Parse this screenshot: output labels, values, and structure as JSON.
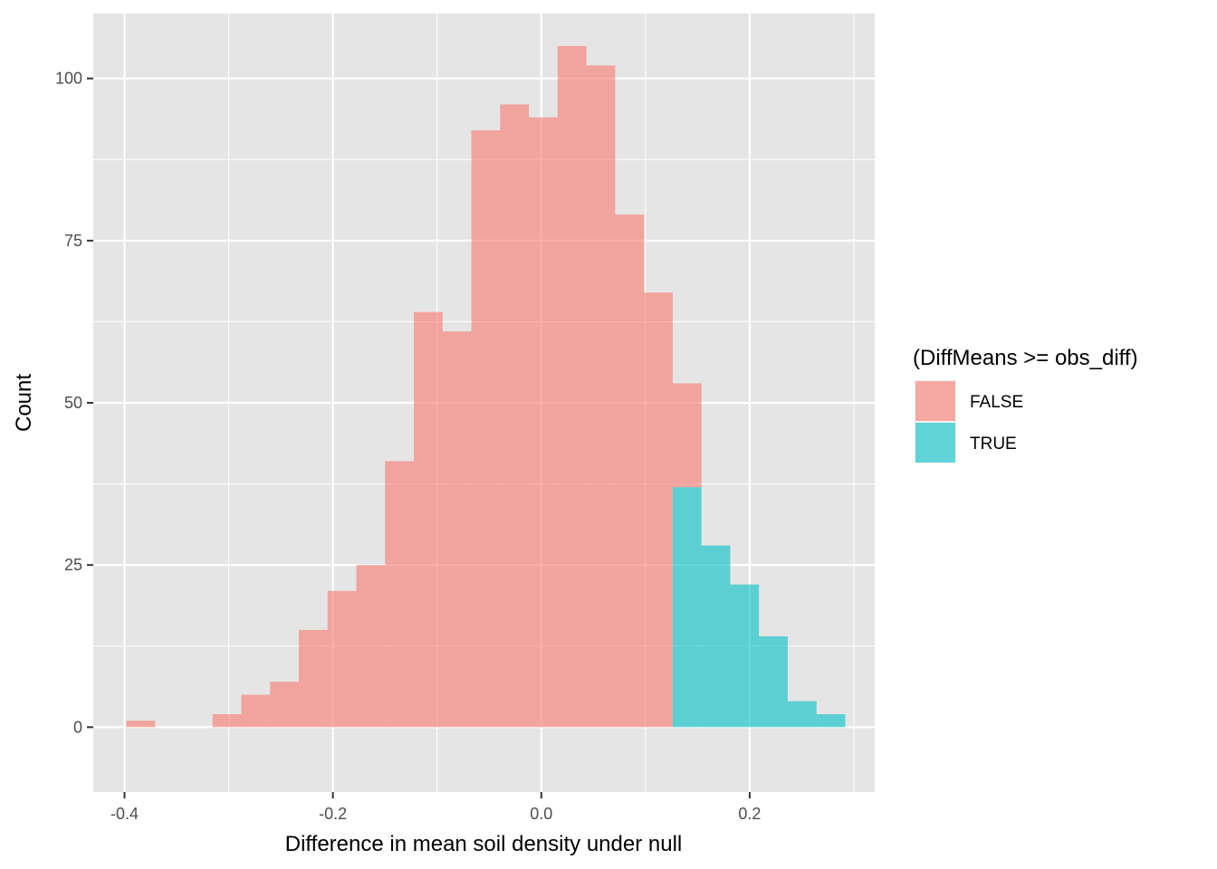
{
  "chart_data": {
    "type": "bar",
    "subtype": "stacked-histogram",
    "xlabel": "Difference in mean soil density under null",
    "ylabel": "Count",
    "xlim": [
      -0.43,
      0.32
    ],
    "ylim": [
      -10,
      110
    ],
    "x_ticks": [
      -0.4,
      -0.2,
      0.0,
      0.2
    ],
    "x_tick_labels": [
      "-0.4",
      "-0.2",
      "0.0",
      "0.2"
    ],
    "y_ticks": [
      0,
      25,
      50,
      75,
      100
    ],
    "y_tick_labels": [
      "0",
      "25",
      "50",
      "75",
      "100"
    ],
    "grid": true,
    "background": "#e5e5e5",
    "bin_width": 0.0276,
    "bin_start": -0.3983,
    "legend": {
      "title": "(DiffMeans >= obs_diff)",
      "position": "right",
      "entries": [
        {
          "label": "FALSE",
          "color": "#f8766d"
        },
        {
          "label": "TRUE",
          "color": "#00bfc4"
        }
      ]
    },
    "fill_alpha": 0.6,
    "series": [
      {
        "name": "FALSE",
        "color": "#f8766d",
        "values": [
          1,
          0,
          0,
          2,
          5,
          7,
          15,
          21,
          25,
          41,
          64,
          61,
          92,
          96,
          94,
          105,
          102,
          79,
          67,
          16,
          0,
          0,
          0,
          0,
          0
        ]
      },
      {
        "name": "TRUE",
        "color": "#00bfc4",
        "values": [
          0,
          0,
          0,
          0,
          0,
          0,
          0,
          0,
          0,
          0,
          0,
          0,
          0,
          0,
          0,
          0,
          0,
          0,
          0,
          37,
          28,
          22,
          14,
          4,
          2
        ]
      }
    ]
  }
}
